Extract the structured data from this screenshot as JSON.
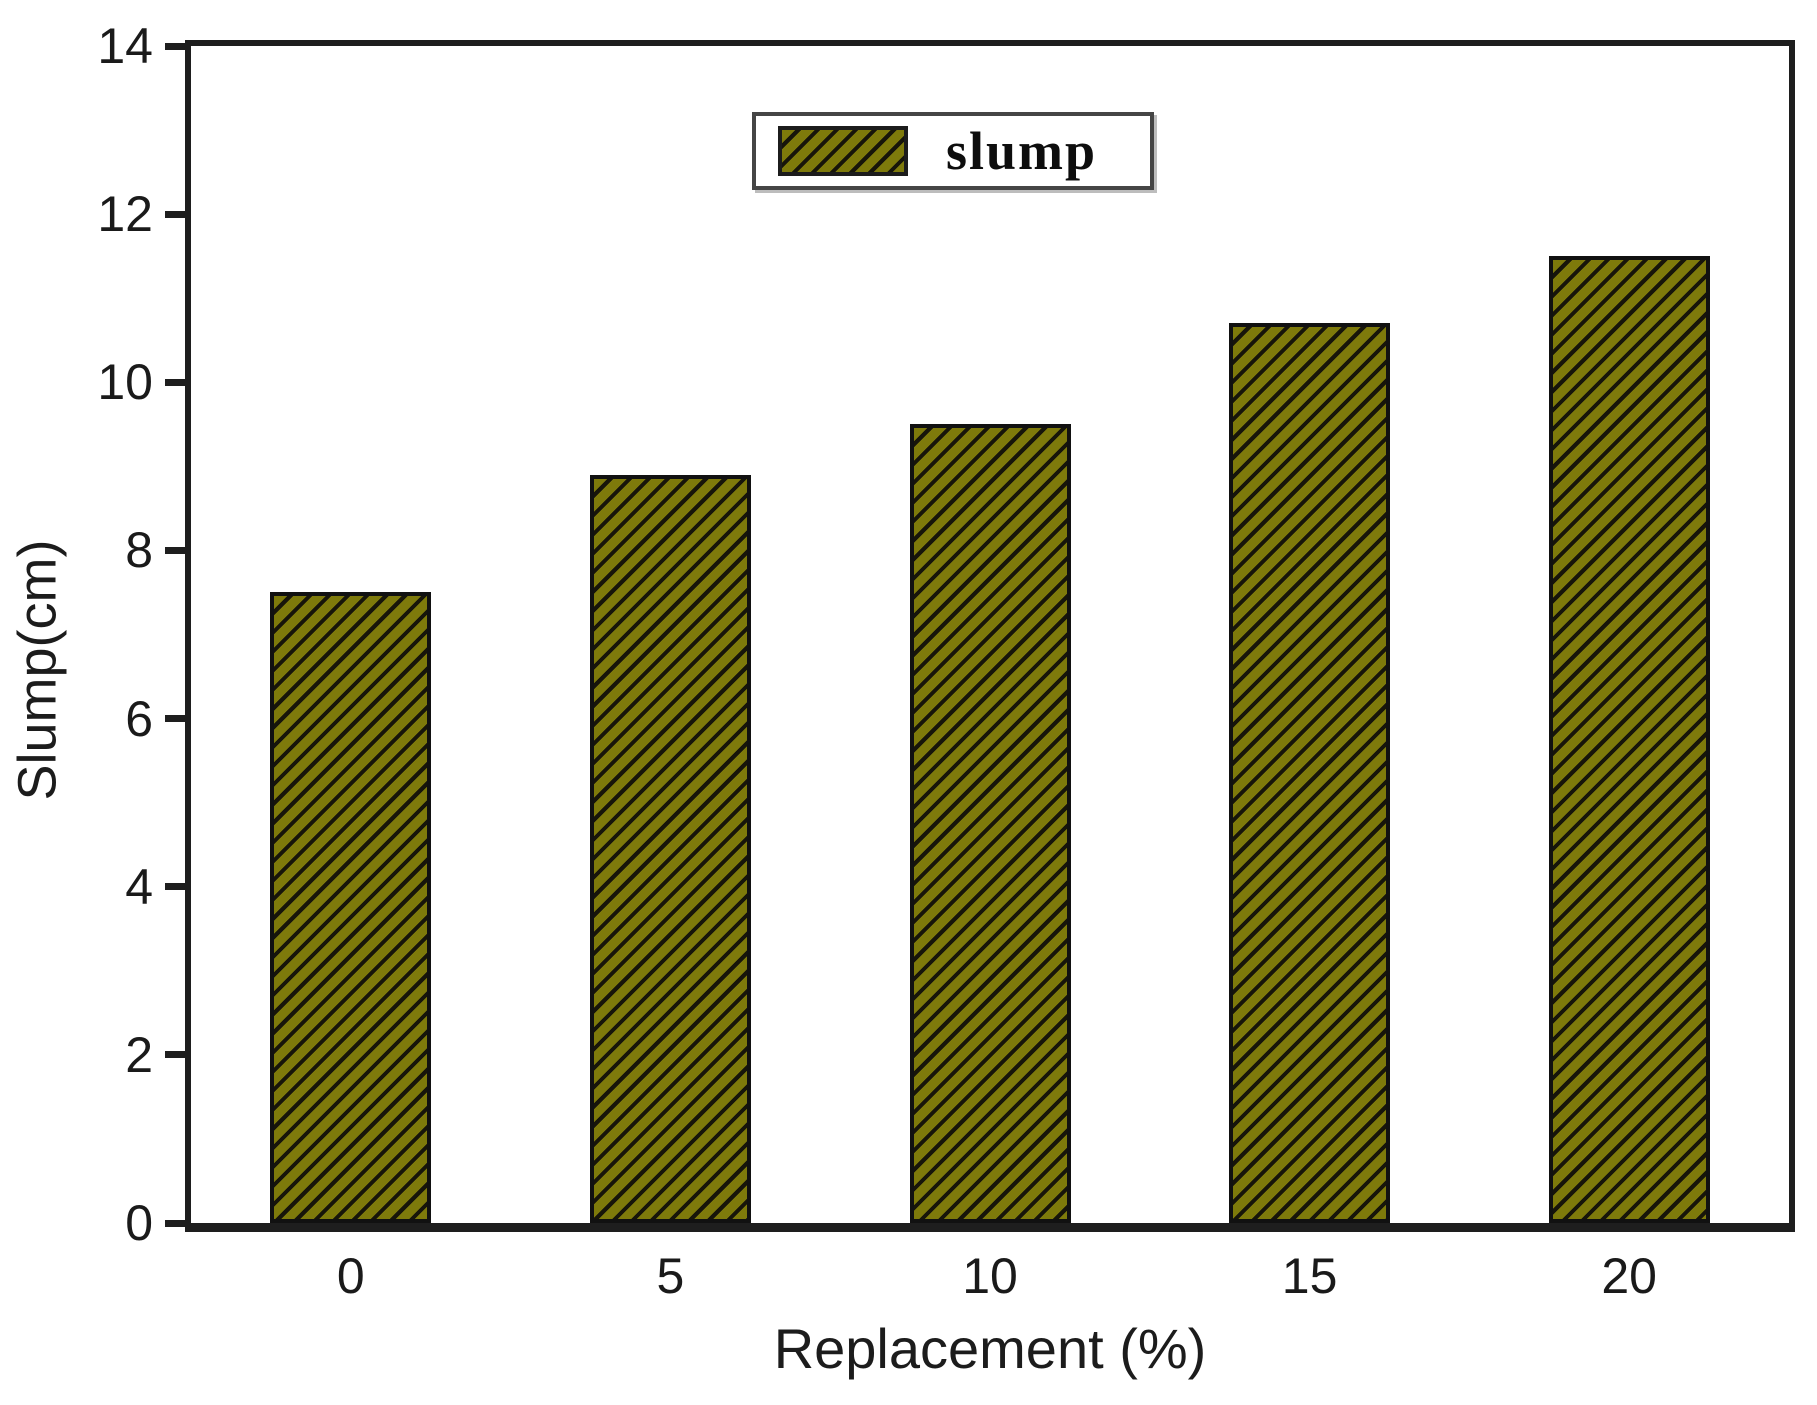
{
  "chart_data": {
    "type": "bar",
    "title": "",
    "categories": [
      "0",
      "5",
      "10",
      "15",
      "20"
    ],
    "values": [
      7.5,
      8.9,
      9.5,
      10.7,
      11.5
    ],
    "series": [
      {
        "name": "slump",
        "values": [
          7.5,
          8.9,
          9.5,
          10.7,
          11.5
        ]
      }
    ],
    "xlabel": "Replacement (%)",
    "ylabel": "Slump(cm)",
    "ylim": [
      0,
      14
    ],
    "yticks": [
      0,
      2,
      4,
      6,
      8,
      10,
      12,
      14
    ],
    "grid": false,
    "hatch": "forward-diagonal",
    "legend": {
      "position": "top-center",
      "entries": [
        {
          "label": "slump"
        }
      ]
    },
    "colors": {
      "bar_fill": "#7e7a0b",
      "hatch_line": "#17150a",
      "bar_border": "#111111",
      "axis": "#1e1e1e",
      "text": "#1a1a1a"
    }
  }
}
